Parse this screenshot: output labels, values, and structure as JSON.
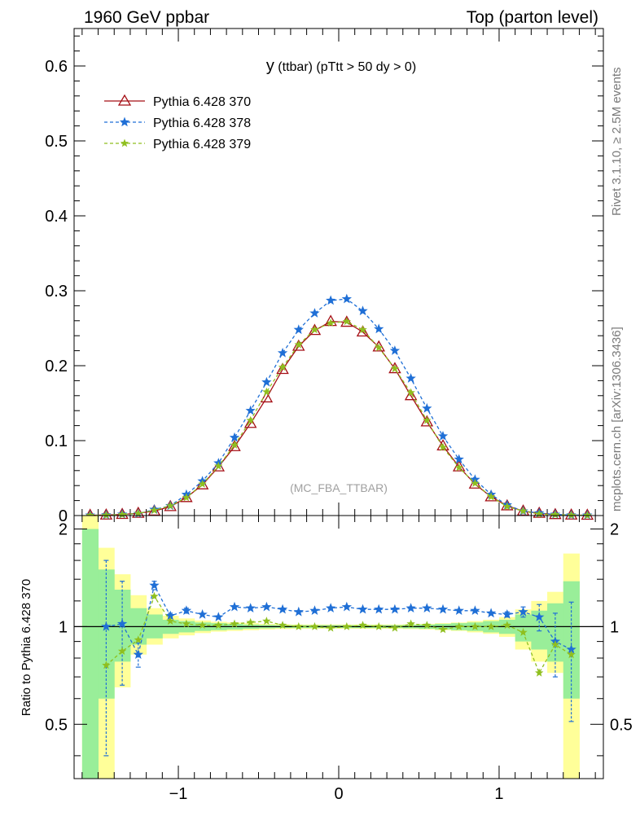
{
  "header": {
    "left": "1960 GeV ppbar",
    "right": "Top (parton level)"
  },
  "side_text": {
    "rivet": "Rivet 3.1.10, ≥ 2.5M events",
    "mcplots": "mcplots.cern.ch [arXiv:1306.3436]"
  },
  "chart_data": [
    {
      "type": "line",
      "title_main": "y",
      "title_rest": "(ttbar) (pTtt > 50 dy > 0)",
      "watermark": "(MC_FBA_TTBAR)",
      "xlabel": "",
      "ylabel": "",
      "xlim": [
        -1.65,
        1.65
      ],
      "ylim": [
        0,
        0.65
      ],
      "yticks": [
        0,
        0.1,
        0.2,
        0.3,
        0.4,
        0.5,
        0.6
      ],
      "ytick_labels": [
        "0",
        "0.1",
        "0.2",
        "0.3",
        "0.4",
        "0.5",
        "0.6"
      ],
      "x": [
        -1.55,
        -1.45,
        -1.35,
        -1.25,
        -1.15,
        -1.05,
        -0.95,
        -0.85,
        -0.75,
        -0.65,
        -0.55,
        -0.45,
        -0.35,
        -0.25,
        -0.15,
        -0.05,
        0.05,
        0.15,
        0.25,
        0.35,
        0.45,
        0.55,
        0.65,
        0.75,
        0.85,
        0.95,
        1.05,
        1.15,
        1.25,
        1.35,
        1.45,
        1.55
      ],
      "series": [
        {
          "name": "Pythia 6.428 370",
          "color": "#a50f15",
          "marker": "triangle-open",
          "dash": "solid",
          "values": [
            0.0004,
            0.0007,
            0.0015,
            0.003,
            0.006,
            0.012,
            0.024,
            0.041,
            0.065,
            0.092,
            0.123,
            0.157,
            0.195,
            0.226,
            0.247,
            0.259,
            0.258,
            0.245,
            0.225,
            0.196,
            0.16,
            0.125,
            0.093,
            0.065,
            0.042,
            0.025,
            0.013,
            0.006,
            0.003,
            0.0013,
            0.0007,
            0.0004
          ]
        },
        {
          "name": "Pythia 6.428 378",
          "color": "#1f6fd6",
          "marker": "star",
          "dash": "dashed",
          "values": [
            0.0004,
            0.0007,
            0.0016,
            0.0025,
            0.008,
            0.013,
            0.028,
            0.046,
            0.07,
            0.104,
            0.14,
            0.178,
            0.217,
            0.248,
            0.27,
            0.287,
            0.289,
            0.273,
            0.249,
            0.22,
            0.183,
            0.143,
            0.106,
            0.075,
            0.048,
            0.028,
            0.014,
            0.006,
            0.0034,
            0.0015,
            0.0006,
            0.0004
          ]
        },
        {
          "name": "Pythia 6.428 379",
          "color": "#8fbf1f",
          "marker": "star",
          "dash": "dashed",
          "values": [
            0.0003,
            0.0005,
            0.0013,
            0.0028,
            0.007,
            0.013,
            0.024,
            0.042,
            0.066,
            0.094,
            0.127,
            0.165,
            0.198,
            0.228,
            0.248,
            0.257,
            0.259,
            0.248,
            0.224,
            0.196,
            0.164,
            0.127,
            0.091,
            0.064,
            0.043,
            0.025,
            0.012,
            0.006,
            0.002,
            0.0012,
            0.0005,
            0.0003
          ]
        }
      ]
    },
    {
      "type": "line",
      "ylabel": "Ratio to Pythia 6.428 370",
      "xlim": [
        -1.65,
        1.65
      ],
      "ylim": [
        0.34,
        2.2
      ],
      "yticks": [
        0.5,
        1,
        2
      ],
      "ytick_labels": [
        "0.5",
        "1",
        "2"
      ],
      "xticks": [
        -1,
        0,
        1
      ],
      "xtick_labels": [
        "−1",
        "0",
        "1"
      ],
      "reference_line": 1,
      "band_edges": [
        -1.6,
        -1.5,
        -1.4,
        -1.3,
        -1.2,
        -1.1,
        -1.0,
        -0.9,
        -0.8,
        -0.7,
        -0.6,
        -0.5,
        -0.4,
        -0.3,
        -0.2,
        -0.1,
        0.0,
        0.1,
        0.2,
        0.3,
        0.4,
        0.5,
        0.6,
        0.7,
        0.8,
        0.9,
        1.0,
        1.1,
        1.2,
        1.3,
        1.4,
        1.5
      ],
      "band_green": [
        [
          0.3,
          2.0
        ],
        [
          0.6,
          1.5
        ],
        [
          0.78,
          1.3
        ],
        [
          0.88,
          1.14
        ],
        [
          0.92,
          1.09
        ],
        [
          0.95,
          1.05
        ],
        [
          0.96,
          1.04
        ],
        [
          0.97,
          1.03
        ],
        [
          0.975,
          1.025
        ],
        [
          0.98,
          1.02
        ],
        [
          0.985,
          1.015
        ],
        [
          0.988,
          1.012
        ],
        [
          0.99,
          1.01
        ],
        [
          0.99,
          1.01
        ],
        [
          0.99,
          1.01
        ],
        [
          0.99,
          1.01
        ],
        [
          0.99,
          1.01
        ],
        [
          0.99,
          1.01
        ],
        [
          0.99,
          1.01
        ],
        [
          0.99,
          1.01
        ],
        [
          0.988,
          1.012
        ],
        [
          0.985,
          1.015
        ],
        [
          0.98,
          1.02
        ],
        [
          0.975,
          1.025
        ],
        [
          0.97,
          1.03
        ],
        [
          0.96,
          1.04
        ],
        [
          0.95,
          1.05
        ],
        [
          0.9,
          1.09
        ],
        [
          0.85,
          1.12
        ],
        [
          0.78,
          1.18
        ],
        [
          0.6,
          1.38
        ]
      ],
      "band_yellow": [
        [
          0.3,
          2.3
        ],
        [
          0.3,
          1.75
        ],
        [
          0.65,
          1.45
        ],
        [
          0.82,
          1.25
        ],
        [
          0.88,
          1.14
        ],
        [
          0.92,
          1.08
        ],
        [
          0.94,
          1.06
        ],
        [
          0.955,
          1.045
        ],
        [
          0.965,
          1.035
        ],
        [
          0.97,
          1.03
        ],
        [
          0.975,
          1.025
        ],
        [
          0.98,
          1.02
        ],
        [
          0.983,
          1.017
        ],
        [
          0.985,
          1.015
        ],
        [
          0.985,
          1.015
        ],
        [
          0.985,
          1.015
        ],
        [
          0.985,
          1.015
        ],
        [
          0.985,
          1.015
        ],
        [
          0.985,
          1.015
        ],
        [
          0.985,
          1.015
        ],
        [
          0.983,
          1.017
        ],
        [
          0.98,
          1.02
        ],
        [
          0.975,
          1.025
        ],
        [
          0.97,
          1.03
        ],
        [
          0.96,
          1.04
        ],
        [
          0.95,
          1.05
        ],
        [
          0.93,
          1.07
        ],
        [
          0.85,
          1.13
        ],
        [
          0.78,
          1.2
        ],
        [
          0.72,
          1.28
        ],
        [
          0.3,
          1.68
        ]
      ],
      "series": [
        {
          "name": "Pythia 6.428 378",
          "color": "#1f6fd6",
          "marker": "star",
          "dash": "dashed",
          "x": [
            -1.45,
            -1.35,
            -1.25,
            -1.15,
            -1.05,
            -0.95,
            -0.85,
            -0.75,
            -0.65,
            -0.55,
            -0.45,
            -0.35,
            -0.25,
            -0.15,
            -0.05,
            0.05,
            0.15,
            0.25,
            0.35,
            0.45,
            0.55,
            0.65,
            0.75,
            0.85,
            0.95,
            1.05,
            1.15,
            1.25,
            1.35,
            1.45
          ],
          "values": [
            1.0,
            1.02,
            0.82,
            1.34,
            1.08,
            1.12,
            1.09,
            1.07,
            1.15,
            1.14,
            1.15,
            1.13,
            1.11,
            1.12,
            1.14,
            1.15,
            1.13,
            1.13,
            1.13,
            1.14,
            1.14,
            1.13,
            1.12,
            1.12,
            1.1,
            1.09,
            1.11,
            1.07,
            0.9,
            0.85
          ],
          "errors": [
            0.6,
            0.36,
            0.07,
            0.04,
            0.02,
            0.02,
            0.01,
            0.01,
            0.01,
            0.01,
            0.01,
            0.01,
            0.01,
            0.01,
            0.01,
            0.01,
            0.01,
            0.01,
            0.01,
            0.01,
            0.01,
            0.01,
            0.01,
            0.01,
            0.01,
            0.02,
            0.04,
            0.1,
            0.2,
            0.34
          ]
        },
        {
          "name": "Pythia 6.428 379",
          "color": "#8fbf1f",
          "marker": "star",
          "dash": "dashed",
          "x": [
            -1.45,
            -1.35,
            -1.25,
            -1.15,
            -1.05,
            -0.95,
            -0.85,
            -0.75,
            -0.65,
            -0.55,
            -0.45,
            -0.35,
            -0.25,
            -0.15,
            -0.05,
            0.05,
            0.15,
            0.25,
            0.35,
            0.45,
            0.55,
            0.65,
            0.75,
            0.85,
            0.95,
            1.05,
            1.15,
            1.25,
            1.35,
            1.45
          ],
          "values": [
            0.76,
            0.84,
            0.91,
            1.24,
            1.04,
            1.02,
            1.01,
            1.01,
            1.02,
            1.03,
            1.04,
            1.01,
            1.0,
            1.0,
            0.99,
            1.0,
            1.01,
            1.0,
            0.99,
            1.02,
            1.01,
            0.98,
            1.0,
            1.0,
            1.0,
            1.01,
            0.96,
            0.72,
            0.88,
            0.82
          ]
        }
      ]
    }
  ]
}
